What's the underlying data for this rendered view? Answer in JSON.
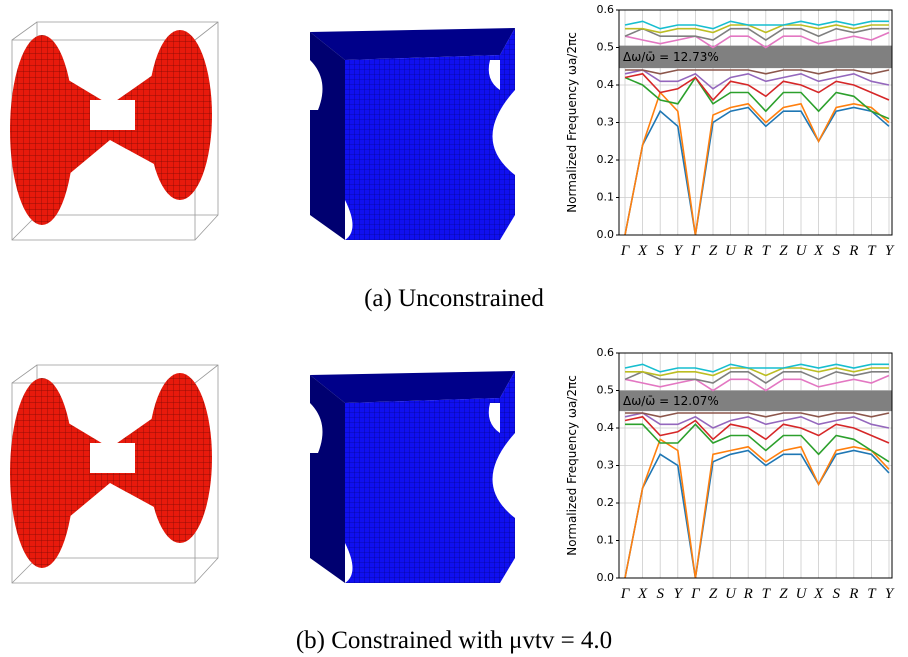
{
  "panels": [
    {
      "caption": "(a) Unconstrained",
      "chart_data": {
        "type": "line",
        "y_label": "Normalized Frequency ωa/2πc",
        "categories": [
          "Γ",
          "X",
          "S",
          "Y",
          "Γ",
          "Z",
          "U",
          "R",
          "T",
          "Z",
          "U",
          "X",
          "S",
          "R",
          "T",
          "Y"
        ],
        "ylim": [
          0,
          0.6
        ],
        "yticks": [
          {
            "value": 0,
            "label": "0.0"
          },
          0.1,
          0.2,
          0.3,
          0.4,
          0.5,
          0.6
        ],
        "grid": true,
        "band_gap": [
          0.445,
          0.505
        ],
        "gap_label": "Δω/ω̄ = 12.73%",
        "gap_color": "#808080",
        "series": [
          {
            "color": "#1f77b4",
            "values": [
              0,
              0.24,
              0.33,
              0.29,
              0,
              0.3,
              0.33,
              0.34,
              0.29,
              0.33,
              0.33,
              0.25,
              0.33,
              0.34,
              0.33,
              0.29
            ]
          },
          {
            "color": "#ff7f0e",
            "values": [
              0,
              0.24,
              0.38,
              0.33,
              0,
              0.32,
              0.34,
              0.35,
              0.3,
              0.34,
              0.35,
              0.25,
              0.34,
              0.35,
              0.34,
              0.3
            ]
          },
          {
            "color": "#2ca02c",
            "values": [
              0.42,
              0.4,
              0.36,
              0.35,
              0.42,
              0.35,
              0.38,
              0.38,
              0.33,
              0.38,
              0.38,
              0.33,
              0.38,
              0.37,
              0.33,
              0.31
            ]
          },
          {
            "color": "#d62728",
            "values": [
              0.42,
              0.43,
              0.38,
              0.39,
              0.42,
              0.36,
              0.41,
              0.4,
              0.37,
              0.41,
              0.4,
              0.38,
              0.41,
              0.4,
              0.38,
              0.36
            ]
          },
          {
            "color": "#9467bd",
            "values": [
              0.43,
              0.44,
              0.41,
              0.41,
              0.43,
              0.39,
              0.42,
              0.43,
              0.41,
              0.42,
              0.43,
              0.41,
              0.42,
              0.43,
              0.41,
              0.4
            ]
          },
          {
            "color": "#8c564b",
            "values": [
              0.44,
              0.44,
              0.43,
              0.44,
              0.44,
              0.44,
              0.44,
              0.44,
              0.43,
              0.44,
              0.44,
              0.43,
              0.44,
              0.44,
              0.43,
              0.44
            ]
          },
          {
            "color": "#e377c2",
            "values": [
              0.53,
              0.52,
              0.51,
              0.52,
              0.53,
              0.5,
              0.53,
              0.53,
              0.5,
              0.53,
              0.53,
              0.51,
              0.52,
              0.53,
              0.52,
              0.54
            ]
          },
          {
            "color": "#7f7f7f",
            "values": [
              0.53,
              0.55,
              0.53,
              0.53,
              0.53,
              0.52,
              0.55,
              0.55,
              0.52,
              0.55,
              0.55,
              0.53,
              0.55,
              0.54,
              0.55,
              0.55
            ]
          },
          {
            "color": "#bcbd22",
            "values": [
              0.55,
              0.55,
              0.54,
              0.55,
              0.55,
              0.54,
              0.56,
              0.56,
              0.54,
              0.56,
              0.56,
              0.55,
              0.56,
              0.55,
              0.56,
              0.56
            ]
          },
          {
            "color": "#17becf",
            "values": [
              0.56,
              0.57,
              0.55,
              0.56,
              0.56,
              0.55,
              0.57,
              0.56,
              0.56,
              0.56,
              0.57,
              0.56,
              0.57,
              0.56,
              0.57,
              0.57
            ]
          }
        ]
      }
    },
    {
      "caption": "(b) Constrained with μvtv = 4.0",
      "chart_data": {
        "type": "line",
        "y_label": "Normalized Frequency ωa/2πc",
        "categories": [
          "Γ",
          "X",
          "S",
          "Y",
          "Γ",
          "Z",
          "U",
          "R",
          "T",
          "Z",
          "U",
          "X",
          "S",
          "R",
          "T",
          "Y"
        ],
        "ylim": [
          0,
          0.6
        ],
        "yticks": [
          {
            "value": 0,
            "label": "0.0"
          },
          0.1,
          0.2,
          0.3,
          0.4,
          0.5,
          0.6
        ],
        "grid": true,
        "band_gap": [
          0.445,
          0.5
        ],
        "gap_label": "Δω/ω̄ = 12.07%",
        "gap_color": "#808080",
        "series": [
          {
            "color": "#1f77b4",
            "values": [
              0,
              0.24,
              0.33,
              0.3,
              0,
              0.31,
              0.33,
              0.34,
              0.3,
              0.33,
              0.33,
              0.25,
              0.33,
              0.34,
              0.33,
              0.28
            ]
          },
          {
            "color": "#ff7f0e",
            "values": [
              0,
              0.24,
              0.37,
              0.34,
              0,
              0.33,
              0.34,
              0.35,
              0.31,
              0.34,
              0.35,
              0.25,
              0.34,
              0.35,
              0.34,
              0.29
            ]
          },
          {
            "color": "#2ca02c",
            "values": [
              0.41,
              0.41,
              0.36,
              0.36,
              0.41,
              0.36,
              0.38,
              0.38,
              0.34,
              0.38,
              0.38,
              0.33,
              0.38,
              0.37,
              0.34,
              0.31
            ]
          },
          {
            "color": "#d62728",
            "values": [
              0.42,
              0.43,
              0.38,
              0.39,
              0.42,
              0.37,
              0.41,
              0.4,
              0.37,
              0.41,
              0.4,
              0.38,
              0.41,
              0.4,
              0.38,
              0.36
            ]
          },
          {
            "color": "#9467bd",
            "values": [
              0.43,
              0.44,
              0.41,
              0.41,
              0.43,
              0.4,
              0.42,
              0.43,
              0.41,
              0.42,
              0.43,
              0.41,
              0.42,
              0.43,
              0.41,
              0.4
            ]
          },
          {
            "color": "#8c564b",
            "values": [
              0.44,
              0.44,
              0.43,
              0.44,
              0.44,
              0.44,
              0.44,
              0.44,
              0.43,
              0.44,
              0.44,
              0.43,
              0.44,
              0.44,
              0.43,
              0.44
            ]
          },
          {
            "color": "#e377c2",
            "values": [
              0.53,
              0.52,
              0.51,
              0.52,
              0.53,
              0.5,
              0.53,
              0.53,
              0.5,
              0.53,
              0.53,
              0.51,
              0.52,
              0.53,
              0.52,
              0.54
            ]
          },
          {
            "color": "#7f7f7f",
            "values": [
              0.53,
              0.55,
              0.53,
              0.53,
              0.53,
              0.52,
              0.55,
              0.55,
              0.52,
              0.55,
              0.55,
              0.53,
              0.55,
              0.54,
              0.55,
              0.55
            ]
          },
          {
            "color": "#bcbd22",
            "values": [
              0.55,
              0.55,
              0.54,
              0.55,
              0.55,
              0.54,
              0.56,
              0.56,
              0.54,
              0.56,
              0.56,
              0.55,
              0.56,
              0.55,
              0.56,
              0.56
            ]
          },
          {
            "color": "#17becf",
            "values": [
              0.56,
              0.57,
              0.55,
              0.56,
              0.56,
              0.55,
              0.57,
              0.56,
              0.56,
              0.56,
              0.57,
              0.56,
              0.57,
              0.56,
              0.57,
              0.57
            ]
          }
        ]
      }
    }
  ]
}
